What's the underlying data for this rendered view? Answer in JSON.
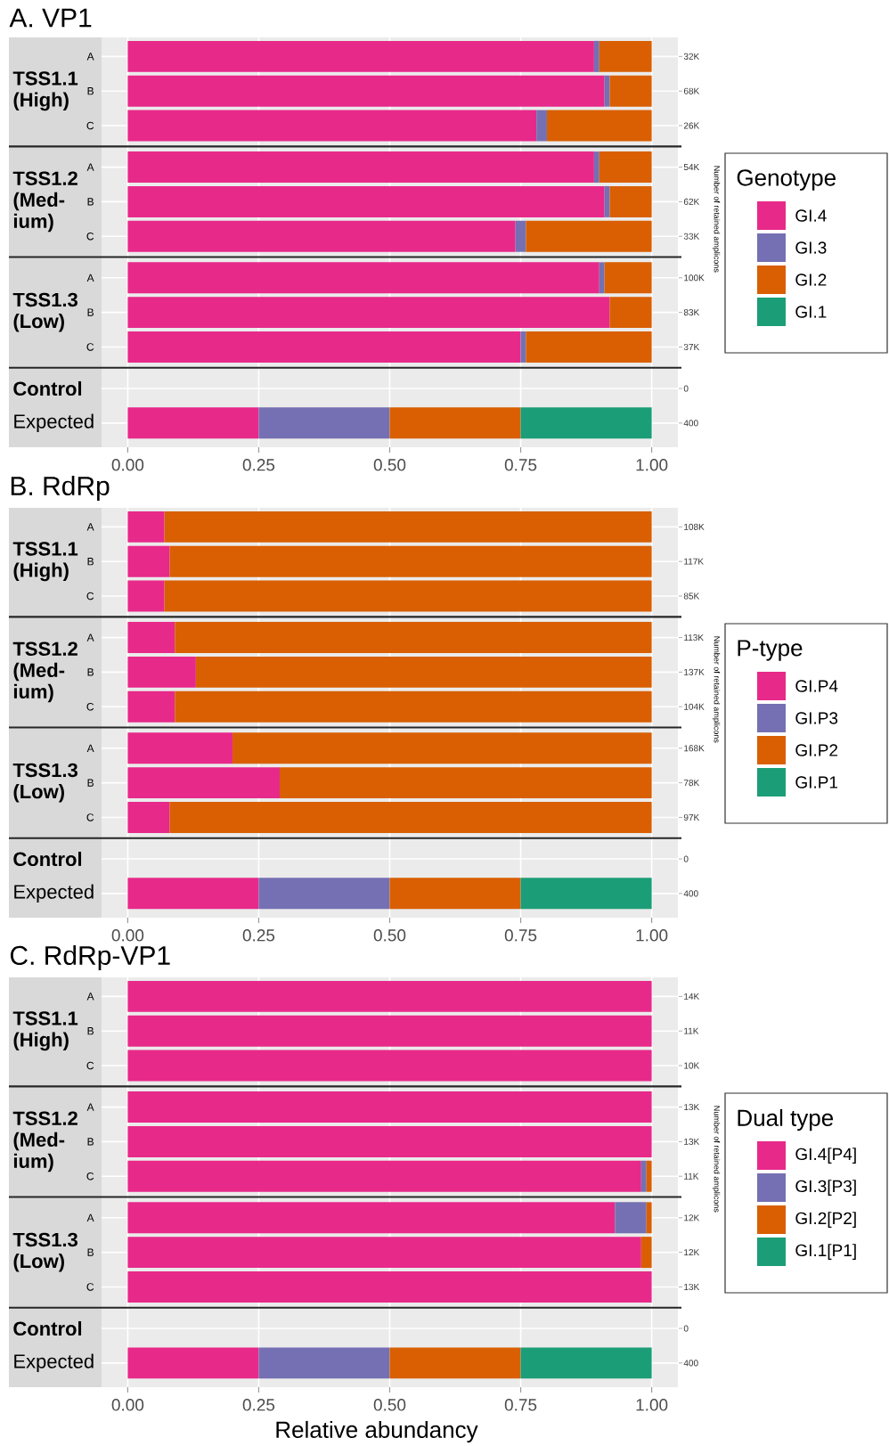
{
  "chart_data": [
    {
      "type": "bar",
      "orientation": "horizontal",
      "stacked": true,
      "title": "A. VP1",
      "y2label": "Number of retained amplicons",
      "legend": "right",
      "legend_title": "Genotype",
      "grid": true,
      "categories": [
        "A",
        "B",
        "C",
        "A",
        "B",
        "C",
        "A",
        "B",
        "C",
        null,
        "Expected"
      ],
      "xlim": [
        -0.05,
        1.05
      ],
      "xticks": [
        {
          "value": 0,
          "label": "0.00"
        },
        {
          "value": 0.25,
          "label": "0.25"
        },
        {
          "value": 0.5,
          "label": "0.50"
        },
        {
          "value": 0.75,
          "label": "0.75"
        },
        {
          "value": 1,
          "label": "1.00"
        }
      ],
      "series": [
        {
          "name": "GI.4",
          "color": "#e7298a",
          "values": [
            0.89,
            0.91,
            0.78,
            0.89,
            0.91,
            0.74,
            0.9,
            0.92,
            0.75,
            null,
            0.25
          ]
        },
        {
          "name": "GI.3",
          "color": "#7570b3",
          "values": [
            0.01,
            0.01,
            0.02,
            0.01,
            0.01,
            0.02,
            0.01,
            0,
            0.01,
            null,
            0.25
          ]
        },
        {
          "name": "GI.2",
          "color": "#d95f02",
          "values": [
            0.1,
            0.08,
            0.2,
            0.1,
            0.08,
            0.24,
            0.09,
            0.08,
            0.24,
            null,
            0.25
          ]
        },
        {
          "name": "GI.1",
          "color": "#1b9e77",
          "values": [
            0,
            0,
            0,
            0,
            0,
            0,
            0,
            0,
            0,
            null,
            0.25
          ]
        }
      ],
      "annotations": [
        "TSS1.1 (High)",
        "TSS1.2 (Med-ium)",
        "TSS1.3 (Low)",
        "Control",
        "32K",
        "68K",
        "26K",
        "54K",
        "62K",
        "33K",
        "100K",
        "83K",
        "37K",
        "0",
        "400"
      ]
    },
    {
      "type": "bar",
      "orientation": "horizontal",
      "stacked": true,
      "title": "B. RdRp",
      "y2label": "Number of retained amplicons",
      "legend": "right",
      "legend_title": "P-type",
      "grid": true,
      "categories": [
        "A",
        "B",
        "C",
        "A",
        "B",
        "C",
        "A",
        "B",
        "C",
        null,
        "Expected"
      ],
      "xlim": [
        -0.05,
        1.05
      ],
      "xticks": [
        {
          "value": 0,
          "label": "0.00"
        },
        {
          "value": 0.25,
          "label": "0.25"
        },
        {
          "value": 0.5,
          "label": "0.50"
        },
        {
          "value": 0.75,
          "label": "0.75"
        },
        {
          "value": 1,
          "label": "1.00"
        }
      ],
      "series": [
        {
          "name": "GI.P4",
          "color": "#e7298a",
          "values": [
            0.07,
            0.08,
            0.07,
            0.09,
            0.13,
            0.09,
            0.2,
            0.29,
            0.08,
            null,
            0.25
          ]
        },
        {
          "name": "GI.P3",
          "color": "#7570b3",
          "values": [
            0,
            0,
            0,
            0,
            0,
            0,
            0,
            0,
            0,
            null,
            0.25
          ]
        },
        {
          "name": "GI.P2",
          "color": "#d95f02",
          "values": [
            0.93,
            0.92,
            0.93,
            0.91,
            0.87,
            0.91,
            0.8,
            0.71,
            0.92,
            null,
            0.25
          ]
        },
        {
          "name": "GI.P1",
          "color": "#1b9e77",
          "values": [
            0,
            0,
            0,
            0,
            0,
            0,
            0,
            0,
            0,
            null,
            0.25
          ]
        }
      ],
      "annotations": [
        "TSS1.1 (High)",
        "TSS1.2 (Med-ium)",
        "TSS1.3 (Low)",
        "Control",
        "108K",
        "117K",
        "85K",
        "113K",
        "137K",
        "104K",
        "168K",
        "78K",
        "97K",
        "0",
        "400"
      ]
    },
    {
      "type": "bar",
      "orientation": "horizontal",
      "stacked": true,
      "title": "C. RdRp-VP1",
      "xlabel": "Relative abundancy",
      "y2label": "Number of retained amplicons",
      "legend": "right",
      "legend_title": "Dual type",
      "grid": true,
      "categories": [
        "A",
        "B",
        "C",
        "A",
        "B",
        "C",
        "A",
        "B",
        "C",
        null,
        "Expected"
      ],
      "xlim": [
        -0.05,
        1.05
      ],
      "xticks": [
        {
          "value": 0,
          "label": "0.00"
        },
        {
          "value": 0.25,
          "label": "0.25"
        },
        {
          "value": 0.5,
          "label": "0.50"
        },
        {
          "value": 0.75,
          "label": "0.75"
        },
        {
          "value": 1,
          "label": "1.00"
        }
      ],
      "series": [
        {
          "name": "GI.4[P4]",
          "color": "#e7298a",
          "values": [
            1,
            1,
            1,
            1,
            1,
            0.98,
            0.93,
            0.98,
            1,
            null,
            0.25
          ]
        },
        {
          "name": "GI.3[P3]",
          "color": "#7570b3",
          "values": [
            0,
            0,
            0,
            0,
            0,
            0.01,
            0.06,
            0,
            0,
            null,
            0.25
          ]
        },
        {
          "name": "GI.2[P2]",
          "color": "#d95f02",
          "values": [
            0,
            0,
            0,
            0,
            0,
            0.01,
            0.01,
            0.02,
            0,
            null,
            0.25
          ]
        },
        {
          "name": "GI.1[P1]",
          "color": "#1b9e77",
          "values": [
            0,
            0,
            0,
            0,
            0,
            0,
            0,
            0,
            0,
            null,
            0.25
          ]
        }
      ],
      "annotations": [
        "TSS1.1 (High)",
        "TSS1.2 (Med-ium)",
        "TSS1.3 (Low)",
        "Control",
        "14K",
        "11K",
        "10K",
        "13K",
        "13K",
        "11K",
        "12K",
        "12K",
        "13K",
        "0",
        "400"
      ]
    }
  ]
}
